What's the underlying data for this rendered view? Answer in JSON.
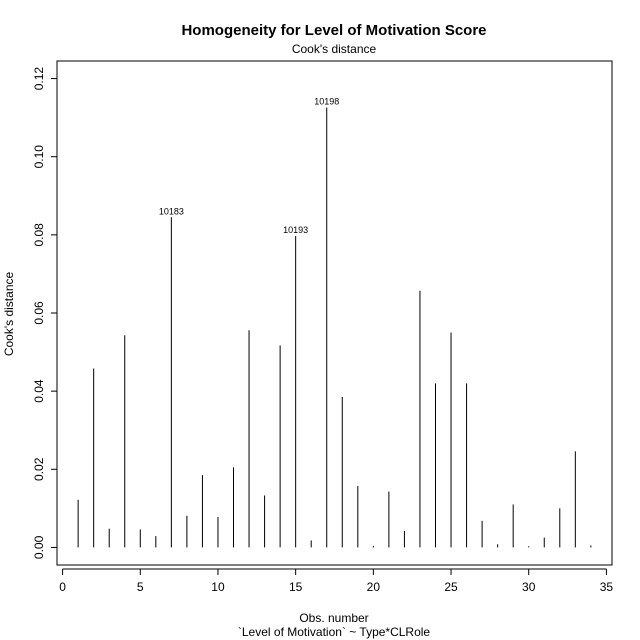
{
  "chart_data": {
    "type": "bar",
    "title": "Homogeneity for Level of Motivation Score",
    "subtitle": "Cook's distance",
    "xlabel": "Obs. number",
    "xlabel2": "`Level of Motivation` ~ Type*CLRole",
    "ylabel": "Cook's distance",
    "xlim": [
      -0.36,
      35.36
    ],
    "ylim": [
      -0.0045,
      0.1245
    ],
    "x_ticks": [
      0,
      5,
      10,
      15,
      20,
      25,
      30,
      35
    ],
    "y_ticks": [
      0.0,
      0.02,
      0.04,
      0.06,
      0.08,
      0.1,
      0.12
    ],
    "y_tick_labels": [
      "0.00",
      "0.02",
      "0.04",
      "0.06",
      "0.08",
      "0.10",
      "0.12"
    ],
    "grid": false,
    "x": [
      1,
      2,
      3,
      4,
      5,
      6,
      7,
      8,
      9,
      10,
      11,
      12,
      13,
      14,
      15,
      16,
      17,
      18,
      19,
      20,
      21,
      22,
      23,
      24,
      25,
      26,
      27,
      28,
      29,
      30,
      31,
      32,
      33,
      34
    ],
    "values": [
      0.0122,
      0.0458,
      0.0048,
      0.0543,
      0.0046,
      0.0029,
      0.0845,
      0.0081,
      0.0185,
      0.0078,
      0.0205,
      0.0556,
      0.0133,
      0.0517,
      0.0797,
      0.0018,
      0.1126,
      0.0385,
      0.0157,
      0.0004,
      0.0143,
      0.0042,
      0.0657,
      0.042,
      0.055,
      0.042,
      0.0068,
      0.0008,
      0.011,
      0.0003,
      0.0025,
      0.01,
      0.0246,
      0.0005
    ],
    "annotations": [
      {
        "x": 7,
        "label": "10183"
      },
      {
        "x": 15,
        "label": "10193"
      },
      {
        "x": 17,
        "label": "10198"
      }
    ]
  }
}
